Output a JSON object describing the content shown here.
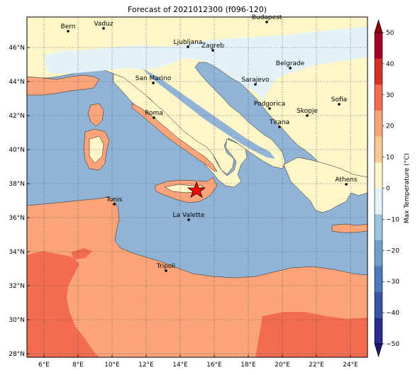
{
  "title": "Forecast of 2021012300 (f096-120)",
  "map": {
    "lon_ticks": [
      "6°E",
      "8°E",
      "10°E",
      "12°E",
      "14°E",
      "16°E",
      "18°E",
      "20°E",
      "22°E",
      "24°E"
    ],
    "lat_ticks": [
      "28°N",
      "30°N",
      "32°N",
      "34°N",
      "36°N",
      "38°N",
      "40°N",
      "42°N",
      "44°N",
      "46°N"
    ],
    "cities": [
      {
        "name": "Bern"
      },
      {
        "name": "Vaduz"
      },
      {
        "name": "Budapest"
      },
      {
        "name": "Ljubljana"
      },
      {
        "name": "Zagreb"
      },
      {
        "name": "Belgrade"
      },
      {
        "name": "San Marino"
      },
      {
        "name": "Sarajevo"
      },
      {
        "name": "Sofia"
      },
      {
        "name": "Roma"
      },
      {
        "name": "Podgorica"
      },
      {
        "name": "Skopje"
      },
      {
        "name": "Tirana"
      },
      {
        "name": "Athens"
      },
      {
        "name": "Tunis"
      },
      {
        "name": "La Valette"
      },
      {
        "name": "Tripoli"
      }
    ],
    "marker": {
      "type": "star",
      "color": "#ff0000"
    },
    "colors": {
      "sea": "#91b4d6",
      "land_mild": "#fdf6c8",
      "land_warm": "#fba47a",
      "land_hot": "#f26c4f",
      "land_cool": "#e2f2f8",
      "grid": "#555555"
    }
  },
  "colorbar": {
    "label": "Max Temperature (°C)",
    "ticks": [
      "−50",
      "−40",
      "−30",
      "−20",
      "−10",
      "0",
      "10",
      "20",
      "30",
      "40",
      "50"
    ],
    "colors": [
      "#2a2c8e",
      "#3b56a4",
      "#4a7bb7",
      "#6f9fca",
      "#9bc3de",
      "#e2f2f8",
      "#fdf6c8",
      "#fbc896",
      "#fba47a",
      "#f26c4f",
      "#d73027",
      "#a50026"
    ],
    "extend_colors": {
      "low": "#1a1a6e",
      "high": "#8b0000"
    }
  }
}
